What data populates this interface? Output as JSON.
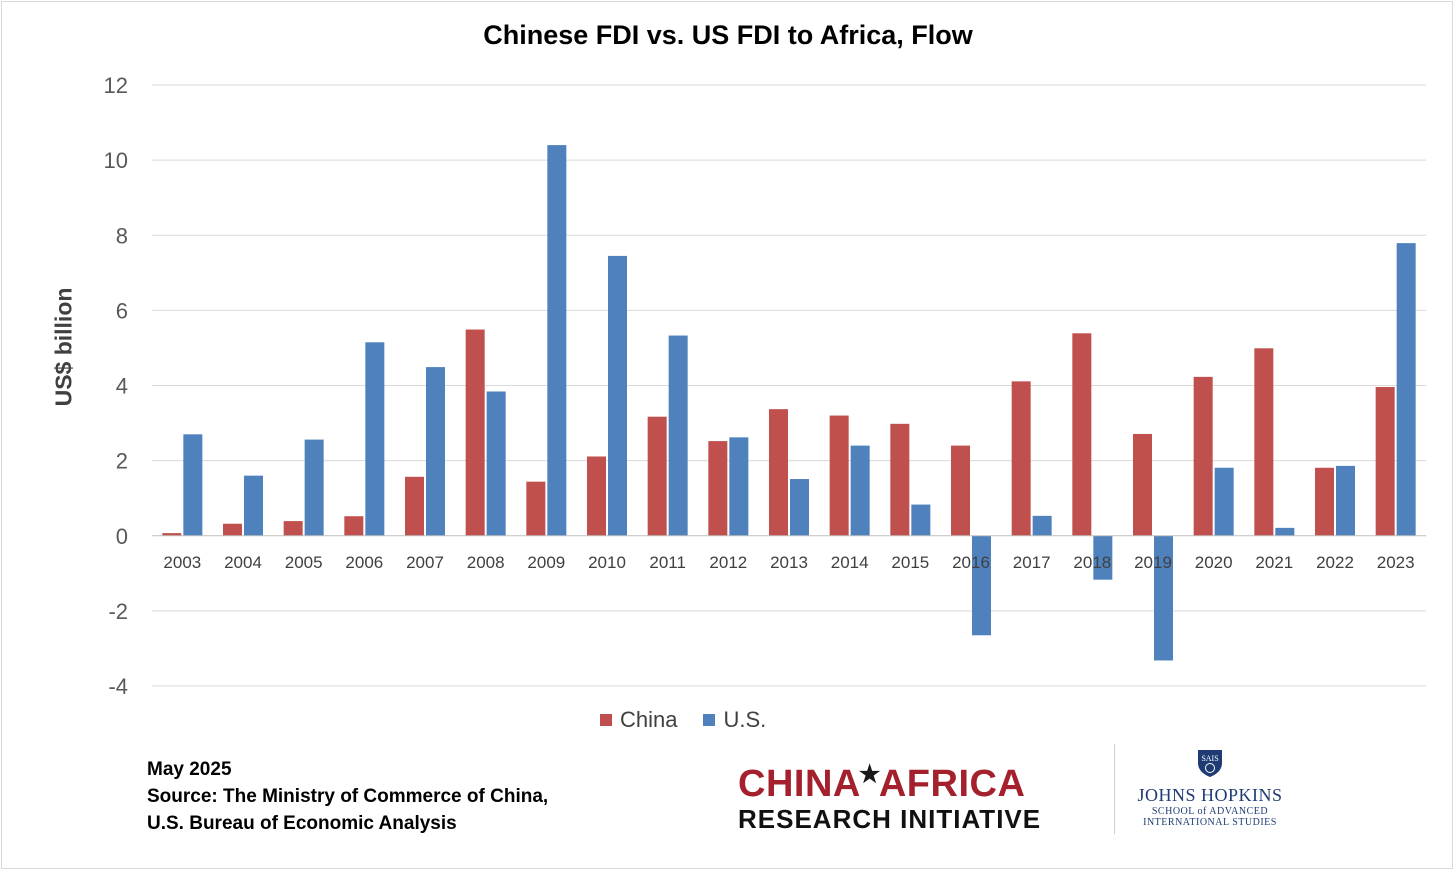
{
  "chart_data": {
    "type": "bar",
    "title": "Chinese FDI vs. US FDI to Africa, Flow",
    "xlabel": "",
    "ylabel": "US$ billion",
    "ylim": [
      -4,
      12
    ],
    "yticks": [
      "12",
      "10",
      "8",
      "6",
      "4",
      "2",
      "0",
      "-2",
      "-4"
    ],
    "grid": true,
    "legend_position": "bottom",
    "categories": [
      "2003",
      "2004",
      "2005",
      "2006",
      "2007",
      "2008",
      "2009",
      "2010",
      "2011",
      "2012",
      "2013",
      "2014",
      "2015",
      "2016",
      "2017",
      "2018",
      "2019",
      "2020",
      "2021",
      "2022",
      "2023"
    ],
    "series": [
      {
        "name": "China",
        "color": "#c0504d",
        "values": [
          0.07,
          0.32,
          0.39,
          0.52,
          1.57,
          5.49,
          1.44,
          2.11,
          3.17,
          2.52,
          3.37,
          3.2,
          2.98,
          2.4,
          4.11,
          5.39,
          2.71,
          4.23,
          4.99,
          1.81,
          3.96
        ]
      },
      {
        "name": "U.S.",
        "color": "#4f81bd",
        "values": [
          2.7,
          1.6,
          2.56,
          5.15,
          4.49,
          3.84,
          10.4,
          7.45,
          5.33,
          2.62,
          1.51,
          2.4,
          0.83,
          -2.65,
          0.53,
          -1.17,
          -3.32,
          1.81,
          0.21,
          1.86,
          7.79
        ]
      }
    ]
  },
  "footer": {
    "date": "May 2025",
    "source_line1": "Source: The Ministry of Commerce of China,",
    "source_line2": "U.S. Bureau of Economic Analysis"
  },
  "logos": {
    "car_line1_a": "CHINA",
    "car_star": "★",
    "car_line1_b": "AFRICA",
    "car_line2": "RESEARCH INITIATIVE",
    "jhu_shield_text": "SAIS",
    "jhu_name": "JOHNS HOPKINS",
    "jhu_sub1": "SCHOOL of ADVANCED",
    "jhu_sub2": "INTERNATIONAL STUDIES"
  }
}
